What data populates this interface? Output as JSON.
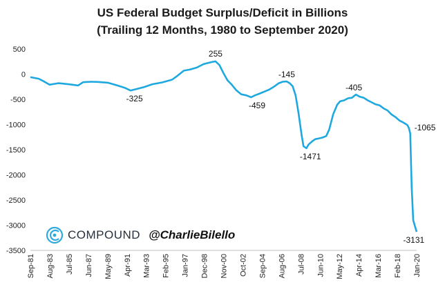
{
  "title_line1": "US Federal Budget Surplus/Deficit in Billions",
  "title_line2": "(Trailing 12 Months, 1980 to September 2020)",
  "brand": {
    "name": "COMPOUND",
    "handle": "@CharlieBilello",
    "logo_icon": "compound-logo-icon",
    "color": "#2fa9dc"
  },
  "chart_data": {
    "type": "line",
    "title": "US Federal Budget Surplus/Deficit in Billions (Trailing 12 Months, 1980 to September 2020)",
    "xlabel": "",
    "ylabel": "",
    "ylim": [
      -3500,
      500
    ],
    "yticks": [
      500,
      0,
      -500,
      -1000,
      -1500,
      -2000,
      -2500,
      -3000,
      -3500
    ],
    "x_tick_labels": [
      "Sep-81",
      "Aug-83",
      "Jul-85",
      "Jun-87",
      "May-89",
      "Apr-91",
      "Mar-93",
      "Feb-95",
      "Jan-97",
      "Dec-98",
      "Nov-00",
      "Oct-02",
      "Sep-04",
      "Aug-06",
      "Jul-08",
      "Jun-10",
      "May-12",
      "Apr-14",
      "Mar-16",
      "Feb-18",
      "Jan-20"
    ],
    "grid": false,
    "line_color": "#1ea8e0",
    "series": [
      {
        "x": [
          1981.67,
          1982.5,
          1983.0,
          1983.6,
          1984.5,
          1985.5,
          1986.5,
          1987.0,
          1987.8,
          1988.5,
          1989.5,
          1990.4,
          1991.2,
          1991.8,
          1992.5,
          1993.2,
          1994.0,
          1995.0,
          1996.0,
          1996.5,
          1997.2,
          1997.8,
          1998.5,
          1999.2,
          2000.0,
          2000.4,
          2000.8,
          2001.2,
          2001.6,
          2002.0,
          2002.5,
          2003.0,
          2003.5,
          2004.0,
          2004.4,
          2004.8,
          2005.3,
          2005.8,
          2006.3,
          2006.8,
          2007.2,
          2007.6,
          2007.9,
          2008.2,
          2008.5,
          2008.8,
          2009.1,
          2009.3,
          2009.6,
          2009.8,
          2010.2,
          2010.5,
          2010.8,
          2011.2,
          2011.6,
          2011.9,
          2012.3,
          2012.7,
          2013.0,
          2013.4,
          2013.8,
          2014.2,
          2014.6,
          2015.0,
          2015.4,
          2015.8,
          2016.2,
          2016.6,
          2017.0,
          2017.4,
          2017.8,
          2018.2,
          2018.6,
          2019.0,
          2019.4,
          2019.8,
          2019.95,
          2020.1,
          2020.25,
          2020.4,
          2020.55,
          2020.75
        ],
        "y": [
          -60,
          -90,
          -140,
          -210,
          -180,
          -200,
          -225,
          -160,
          -150,
          -155,
          -170,
          -220,
          -270,
          -325,
          -290,
          -255,
          -200,
          -165,
          -110,
          -40,
          70,
          90,
          130,
          200,
          240,
          255,
          180,
          20,
          -120,
          -200,
          -320,
          -400,
          -420,
          -459,
          -420,
          -390,
          -350,
          -310,
          -250,
          -180,
          -150,
          -145,
          -180,
          -240,
          -420,
          -780,
          -1200,
          -1430,
          -1471,
          -1400,
          -1330,
          -1290,
          -1280,
          -1260,
          -1230,
          -1100,
          -800,
          -610,
          -540,
          -520,
          -480,
          -470,
          -405,
          -450,
          -470,
          -520,
          -560,
          -600,
          -620,
          -680,
          -720,
          -800,
          -850,
          -920,
          -960,
          -1010,
          -1065,
          -1180,
          -2250,
          -2900,
          -3000,
          -3131
        ]
      }
    ],
    "annotations": [
      {
        "x": 1992.2,
        "y": -325,
        "text": "-325"
      },
      {
        "x": 2000.4,
        "y": 255,
        "text": "255"
      },
      {
        "x": 2004.6,
        "y": -459,
        "text": "-459"
      },
      {
        "x": 2007.6,
        "y": -145,
        "text": "-145"
      },
      {
        "x": 2010.0,
        "y": -1471,
        "text": "-1471"
      },
      {
        "x": 2014.4,
        "y": -405,
        "text": "-405"
      },
      {
        "x": 2020.1,
        "y": -1065,
        "text": "-1065"
      },
      {
        "x": 2020.6,
        "y": -3131,
        "text": "-3131"
      }
    ]
  }
}
